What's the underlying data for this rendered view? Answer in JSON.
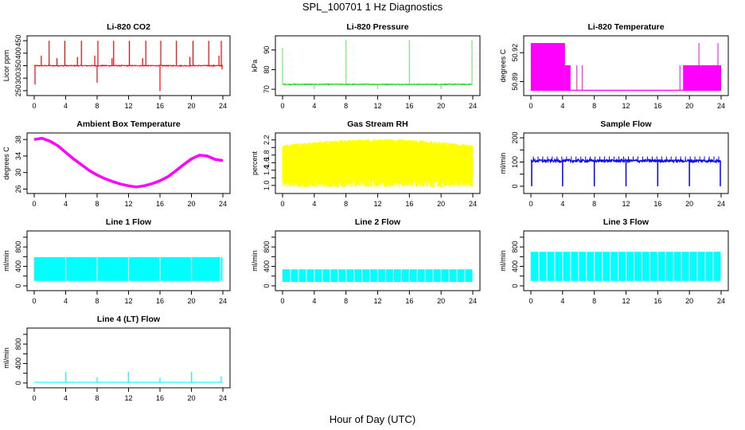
{
  "figure": {
    "title": "SPL_100701  1 Hz Diagnostics",
    "xlabel": "Hour of Day (UTC)"
  },
  "chart_data": [
    {
      "type": "line",
      "title": "Li-820 CO2",
      "ylabel": "Licor ppm",
      "color": "#ff0000",
      "xlim": [
        0,
        24
      ],
      "xticks": [
        0,
        4,
        8,
        12,
        16,
        20,
        24
      ],
      "ylim": [
        240,
        460
      ],
      "yticks": [
        250,
        300,
        350,
        400,
        450
      ],
      "baseline": 350,
      "spikes_up": [
        [
          0.9,
          390
        ],
        [
          1.9,
          450
        ],
        [
          2.9,
          380
        ],
        [
          3.9,
          450
        ],
        [
          5.5,
          385
        ],
        [
          6.0,
          450
        ],
        [
          7.7,
          390
        ],
        [
          8.1,
          450
        ],
        [
          9.9,
          380
        ],
        [
          10.1,
          450
        ],
        [
          12.1,
          450
        ],
        [
          13.8,
          380
        ],
        [
          14.2,
          450
        ],
        [
          16.1,
          450
        ],
        [
          18.1,
          450
        ],
        [
          19.8,
          385
        ],
        [
          20.2,
          450
        ],
        [
          22.2,
          450
        ],
        [
          23.5,
          390
        ],
        [
          23.8,
          450
        ]
      ],
      "spikes_down": [
        [
          0.1,
          275
        ],
        [
          8.0,
          282
        ],
        [
          16.0,
          248
        ],
        [
          23.9,
          335
        ]
      ]
    },
    {
      "type": "line",
      "title": "Li-820 Pressure",
      "ylabel": "kPa",
      "color": "#00cc00",
      "xlim": [
        0,
        24
      ],
      "xticks": [
        0,
        4,
        8,
        12,
        16,
        20,
        24
      ],
      "ylim": [
        68,
        96
      ],
      "yticks": [
        70,
        80,
        90
      ],
      "baseline": 72.5,
      "spikes_up": [
        [
          0.0,
          91
        ],
        [
          8.0,
          95
        ],
        [
          16.0,
          95
        ],
        [
          23.9,
          95
        ]
      ],
      "spikes_down": [
        [
          4.0,
          70
        ],
        [
          12.0,
          70
        ],
        [
          20.0,
          70
        ]
      ]
    },
    {
      "type": "line",
      "title": "Li-820 Temperature",
      "ylabel": "degrees C",
      "color": "#ff00ff",
      "xlim": [
        0,
        24
      ],
      "xticks": [
        0,
        4,
        8,
        12,
        16,
        20,
        24
      ],
      "ylim": [
        50.878,
        50.935
      ],
      "yticks": [
        50.89,
        50.92
      ],
      "ytick_labels": [
        "50.89",
        "50.92"
      ]
    },
    {
      "type": "line",
      "title": "Ambient Box Temperature",
      "ylabel": "degrees C",
      "color": "#ff00ff",
      "xlim": [
        0,
        24
      ],
      "xticks": [
        0,
        4,
        8,
        12,
        16,
        20,
        24
      ],
      "ylim": [
        25.5,
        39
      ],
      "yticks": [
        26,
        30,
        34,
        38
      ],
      "x": [
        0,
        1,
        2,
        3,
        4,
        5,
        6,
        7,
        8,
        9,
        10,
        11,
        12,
        13,
        14,
        15,
        16,
        17,
        18,
        19,
        20,
        21,
        22,
        23,
        24
      ],
      "values": [
        38.0,
        38.3,
        37.6,
        36.5,
        34.9,
        33.3,
        31.9,
        30.5,
        29.4,
        28.5,
        27.8,
        27.2,
        26.8,
        26.5,
        26.8,
        27.3,
        28.0,
        29.0,
        30.4,
        31.9,
        33.3,
        34.2,
        34.0,
        33.2,
        32.9
      ]
    },
    {
      "type": "line",
      "title": "Gas Stream RH",
      "ylabel": "percent",
      "color": "#ffff00",
      "xlim": [
        0,
        24
      ],
      "xticks": [
        0,
        4,
        8,
        12,
        16,
        20,
        24
      ],
      "ylim": [
        0.85,
        2.32
      ],
      "yticks": [
        1.0,
        1.2,
        1.4,
        1.6,
        1.8,
        2.0,
        2.2
      ],
      "ytick_labels": [
        "1.0",
        "",
        "1.4",
        "1.6",
        "1.8",
        "",
        "2.2"
      ],
      "upper_envelope": 2.0,
      "lower_envelope": 0.95
    },
    {
      "type": "line",
      "title": "Sample Flow",
      "ylabel": "ml/min",
      "color": "#0000ff",
      "xlim": [
        0,
        24
      ],
      "xticks": [
        0,
        4,
        8,
        12,
        16,
        20,
        24
      ],
      "ylim": [
        -20,
        210
      ],
      "yticks": [
        0,
        50,
        100,
        150,
        200
      ],
      "ytick_labels": [
        "0",
        "",
        "100",
        "",
        "200"
      ],
      "baseline": 105,
      "dips": [
        0.1,
        4.0,
        8.0,
        12.0,
        16.0,
        20.0,
        23.9
      ]
    },
    {
      "type": "area",
      "title": "Line 1 Flow",
      "ylabel": "ml/min",
      "color": "#00ffff",
      "xlim": [
        0,
        24
      ],
      "xticks": [
        0,
        4,
        8,
        12,
        16,
        20,
        24
      ],
      "ylim": [
        -50,
        1080
      ],
      "yticks": [
        0,
        200,
        400,
        600,
        800,
        1000
      ],
      "ytick_labels": [
        "0",
        "",
        "400",
        "",
        "800",
        ""
      ],
      "low": 100,
      "high": 590,
      "gaps": [
        4.0,
        8.0,
        12.0,
        16.0,
        20.0,
        23.7
      ]
    },
    {
      "type": "area",
      "title": "Line 2 Flow",
      "ylabel": "ml/min",
      "color": "#00ffff",
      "xlim": [
        0,
        24
      ],
      "xticks": [
        0,
        4,
        8,
        12,
        16,
        20,
        24
      ],
      "ylim": [
        -50,
        1080
      ],
      "yticks": [
        0,
        200,
        400,
        600,
        800,
        1000
      ],
      "ytick_labels": [
        "0",
        "",
        "400",
        "",
        "800",
        ""
      ],
      "low": 80,
      "high": 340,
      "gaps": [
        1,
        2,
        3,
        4,
        5,
        6,
        7,
        8,
        9,
        10,
        11,
        12,
        13,
        14,
        15,
        16,
        17,
        18,
        19,
        20,
        21,
        22,
        23
      ]
    },
    {
      "type": "area",
      "title": "Line 3 Flow",
      "ylabel": "ml/min",
      "color": "#00ffff",
      "xlim": [
        0,
        24
      ],
      "xticks": [
        0,
        4,
        8,
        12,
        16,
        20,
        24
      ],
      "ylim": [
        -50,
        1080
      ],
      "yticks": [
        0,
        200,
        400,
        600,
        800,
        1000
      ],
      "ytick_labels": [
        "0",
        "",
        "400",
        "",
        "800",
        ""
      ],
      "low": 100,
      "high": 700,
      "gaps": [
        1,
        2,
        3,
        4,
        5,
        6,
        7,
        8,
        9,
        10,
        11,
        12,
        13,
        14,
        15,
        16,
        17,
        18,
        19,
        20,
        21,
        22,
        23
      ]
    },
    {
      "type": "line",
      "title": "Line 4 (LT) Flow",
      "ylabel": "ml/min",
      "color": "#00ffff",
      "xlim": [
        0,
        24
      ],
      "xticks": [
        0,
        4,
        8,
        12,
        16,
        20,
        24
      ],
      "ylim": [
        -50,
        1080
      ],
      "yticks": [
        0,
        200,
        400,
        600,
        800,
        1000
      ],
      "ytick_labels": [
        "0",
        "",
        "400",
        "",
        "800",
        ""
      ],
      "baseline": 15,
      "spikes_up": [
        [
          4.0,
          230
        ],
        [
          8.0,
          120
        ],
        [
          12.0,
          230
        ],
        [
          16.0,
          110
        ],
        [
          20.0,
          230
        ],
        [
          23.8,
          140
        ]
      ]
    }
  ]
}
